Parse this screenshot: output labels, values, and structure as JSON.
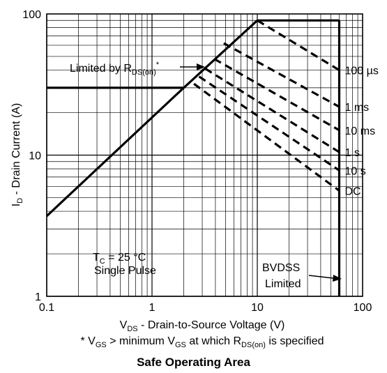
{
  "chart_data": {
    "type": "line",
    "title": "Safe Operating Area",
    "xscale": "log",
    "yscale": "log",
    "xlim": [
      0.1,
      100
    ],
    "ylim": [
      1,
      100
    ],
    "grid": true,
    "xlabel": {
      "main": "V",
      "sub": "DS",
      "rest": " - Drain-to-Source Voltage (V)"
    },
    "ylabel": {
      "main": "I",
      "sub": "D",
      "rest": " - Drain Current (A)"
    },
    "footnote": {
      "p1": "* V",
      "s1": "GS",
      "p2": " > minimum V",
      "s2": "GS",
      "p3": " at which R",
      "s3": "DS(on)",
      "p4": " is specified"
    },
    "x_ticks": [
      {
        "value": 0.1,
        "label": "0.1"
      },
      {
        "value": 1,
        "label": "1"
      },
      {
        "value": 10,
        "label": "10"
      },
      {
        "value": 100,
        "label": "100"
      }
    ],
    "y_ticks": [
      {
        "value": 1,
        "label": "1"
      },
      {
        "value": 10,
        "label": "10"
      },
      {
        "value": 100,
        "label": "100"
      }
    ],
    "rds_limit": {
      "x": [
        0.1,
        2.0,
        10.0
      ],
      "y": [
        3.7,
        30,
        90
      ]
    },
    "current_limit": {
      "x": [
        0.1,
        2.0
      ],
      "y": [
        30,
        30
      ]
    },
    "top_limit": {
      "x": [
        10,
        60
      ],
      "y": [
        90,
        90
      ]
    },
    "bvdss_limit": {
      "x": [
        60,
        60
      ],
      "y": [
        1,
        90
      ]
    },
    "series": [
      {
        "name": "100 µs",
        "x": [
          10,
          60
        ],
        "y": [
          90,
          40
        ]
      },
      {
        "name": "1 ms",
        "x": [
          4.8,
          60
        ],
        "y": [
          62,
          22
        ]
      },
      {
        "name": "10 ms",
        "x": [
          3.9,
          60
        ],
        "y": [
          48,
          15
        ]
      },
      {
        "name": "1 s",
        "x": [
          3.2,
          60
        ],
        "y": [
          41,
          10.5
        ]
      },
      {
        "name": "10 s",
        "x": [
          2.8,
          60
        ],
        "y": [
          36,
          7.8
        ]
      },
      {
        "name": "DC",
        "x": [
          2.5,
          60
        ],
        "y": [
          32,
          5.6
        ]
      }
    ],
    "annotations": {
      "rds": {
        "text": "Limited by R",
        "sub": "DS(on)",
        "sup": "*"
      },
      "tc": {
        "main": "T",
        "sub": "C",
        "rest": " = 25 °C"
      },
      "pulse": "Single Pulse",
      "bvdss_1": "BVDSS",
      "bvdss_2": "Limited"
    }
  }
}
